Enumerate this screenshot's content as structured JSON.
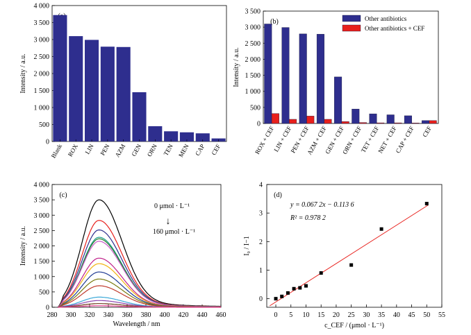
{
  "chart_data": [
    {
      "panel_label": "(a)",
      "type": "bar",
      "ylabel": "Intensity / a.u.",
      "ylim": [
        0,
        4000
      ],
      "yticks": [
        0,
        500,
        1000,
        1500,
        2000,
        2500,
        3000,
        3500,
        4000
      ],
      "ytick_labels": [
        "0",
        "500",
        "1 000",
        "1 500",
        "2 000",
        "2 500",
        "3 000",
        "3 500",
        "4 000"
      ],
      "categories": [
        "Blank",
        "ROX",
        "LIN",
        "PEN",
        "AZM",
        "GEN",
        "ORN",
        "TEN",
        "MEN",
        "CAP",
        "CEF"
      ],
      "values": [
        3720,
        3100,
        2990,
        2790,
        2780,
        1450,
        450,
        300,
        270,
        240,
        90
      ],
      "bar_color": "#2e2e8e"
    },
    {
      "panel_label": "(b)",
      "type": "bar",
      "ylabel": "Intensity / a.u.",
      "ylim": [
        0,
        3500
      ],
      "yticks": [
        0,
        500,
        1000,
        1500,
        2000,
        2500,
        3000,
        3500
      ],
      "ytick_labels": [
        "0",
        "500",
        "1 000",
        "1 500",
        "2 000",
        "2 500",
        "3 000",
        "3 500"
      ],
      "categories": [
        "ROX + CEF",
        "LIN + CEF",
        "PEN + CEF",
        "AZM + CEF",
        "GEN + CEF",
        "ORN + CEF",
        "TET + CEF",
        "NET + CEF",
        "CAP + CEF",
        "CEF"
      ],
      "legend": "top-right",
      "series": [
        {
          "name": "Other antibiotics",
          "color": "#2e2e8e",
          "values": [
            3100,
            2990,
            2790,
            2780,
            1450,
            450,
            300,
            270,
            240,
            90
          ]
        },
        {
          "name": "Other antibiotics + CEF",
          "color": "#e8201c",
          "values": [
            310,
            130,
            230,
            130,
            60,
            30,
            20,
            20,
            15,
            90
          ]
        }
      ]
    },
    {
      "panel_label": "(c)",
      "type": "line",
      "xlabel": "Wavelength / nm",
      "ylabel": "Intensity / a.u.",
      "xlim": [
        280,
        460
      ],
      "xticks": [
        280,
        300,
        320,
        340,
        360,
        380,
        400,
        420,
        440,
        460
      ],
      "ylim": [
        0,
        4000
      ],
      "yticks": [
        0,
        500,
        1000,
        1500,
        2000,
        2500,
        3000,
        3500,
        4000
      ],
      "ytick_labels": [
        "0",
        "500",
        "1 000",
        "1 500",
        "2 000",
        "2 500",
        "3 000",
        "3 500",
        "4 000"
      ],
      "annotations": [
        "0 μmol · L⁻¹",
        "↓",
        "160 μmol · L⁻¹"
      ],
      "peak_x": 330,
      "series": [
        {
          "peak": 3500,
          "color": "#000000"
        },
        {
          "peak": 2830,
          "color": "#e8201c"
        },
        {
          "peak": 2520,
          "color": "#2e2e8e"
        },
        {
          "peak": 2280,
          "color": "#1aa08c"
        },
        {
          "peak": 2230,
          "color": "#2a7a2a"
        },
        {
          "peak": 2150,
          "color": "#c85ac8"
        },
        {
          "peak": 1600,
          "color": "#c0208a"
        },
        {
          "peak": 1420,
          "color": "#f2b20f"
        },
        {
          "peak": 1150,
          "color": "#1f3a93"
        },
        {
          "peak": 920,
          "color": "#7a7a10"
        },
        {
          "peak": 700,
          "color": "#c0392b"
        },
        {
          "peak": 330,
          "color": "#3aa8d8"
        },
        {
          "peak": 220,
          "color": "#8e44ad"
        },
        {
          "peak": 120,
          "color": "#6b3a1a"
        },
        {
          "peak": 50,
          "color": "#e83e8c"
        }
      ]
    },
    {
      "panel_label": "(d)",
      "type": "scatter",
      "xlabel": "c_CEF / (μmol · L⁻¹)",
      "ylabel": "I₀ / I−1",
      "xlim": [
        -3,
        55
      ],
      "xticks": [
        0,
        5,
        10,
        15,
        20,
        25,
        30,
        35,
        40,
        45,
        50,
        55
      ],
      "ylim": [
        -0.3,
        4
      ],
      "yticks": [
        0,
        1,
        2,
        3,
        4
      ],
      "equation": "y = 0.067 2x − 0.113 6",
      "r2": "R² = 0.978 2",
      "fit": {
        "slope": 0.0672,
        "intercept": -0.1136
      },
      "fit_color": "#e8201c",
      "x": [
        0,
        2,
        4,
        6,
        8,
        10,
        15,
        25,
        35,
        50
      ],
      "y": [
        0.0,
        0.08,
        0.2,
        0.35,
        0.38,
        0.45,
        0.9,
        1.18,
        2.44,
        3.33
      ]
    }
  ]
}
